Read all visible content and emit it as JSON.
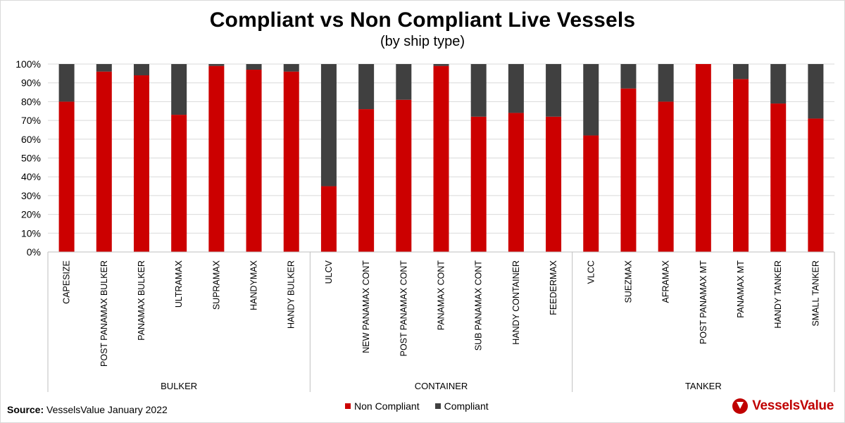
{
  "title": "Compliant vs Non Compliant Live Vessels",
  "subtitle": "(by ship type)",
  "source_label": "Source:",
  "source_text": "VesselsValue January 2022",
  "logo_text": "VesselsValue",
  "colors": {
    "non_compliant": "#cc0000",
    "compliant": "#404040",
    "grid": "#d9d9d9",
    "axis": "#bfbfbf"
  },
  "chart_data": {
    "type": "bar",
    "stacked": true,
    "title": "Compliant vs Non Compliant Live Vessels",
    "subtitle": "(by ship type)",
    "ylim": [
      0,
      100
    ],
    "y_ticks": [
      "0%",
      "10%",
      "20%",
      "30%",
      "40%",
      "50%",
      "60%",
      "70%",
      "80%",
      "90%",
      "100%"
    ],
    "legend_position": "bottom",
    "grid": true,
    "categories": [
      "CAPESIZE",
      "POST PANAMAX BULKER",
      "PANAMAX BULKER",
      "ULTRAMAX",
      "SUPRAMAX",
      "HANDYMAX",
      "HANDY BULKER",
      "ULCV",
      "NEW PANAMAX CONT",
      "POST PANAMAX CONT",
      "PANAMAX CONT",
      "SUB PANAMAX CONT",
      "HANDY CONTAINER",
      "FEEDERMAX",
      "VLCC",
      "SUEZMAX",
      "AFRAMAX",
      "POST PANAMAX MT",
      "PANAMAX MT",
      "HANDY TANKER",
      "SMALL TANKER"
    ],
    "groups": [
      {
        "name": "BULKER",
        "start": 0,
        "count": 7
      },
      {
        "name": "CONTAINER",
        "start": 7,
        "count": 7
      },
      {
        "name": "TANKER",
        "start": 14,
        "count": 7
      }
    ],
    "series": [
      {
        "name": "Non Compliant",
        "values": [
          80,
          96,
          94,
          73,
          99,
          97,
          96,
          35,
          76,
          81,
          99,
          72,
          74,
          72,
          62,
          87,
          80,
          100,
          92,
          79,
          71
        ]
      },
      {
        "name": "Compliant",
        "values": [
          20,
          4,
          6,
          27,
          1,
          3,
          4,
          65,
          24,
          19,
          1,
          28,
          26,
          28,
          38,
          13,
          20,
          0,
          8,
          21,
          29
        ]
      }
    ]
  }
}
